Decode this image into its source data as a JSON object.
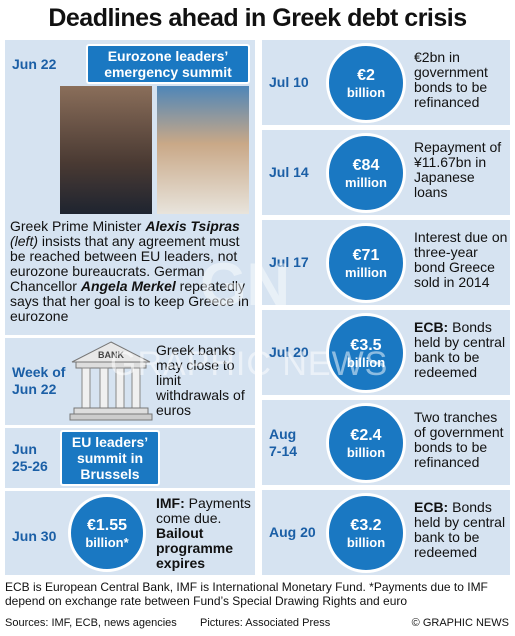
{
  "title": "Deadlines ahead in Greek debt crisis",
  "watermark": {
    "logo": "GN",
    "text": "GRAPHIC NEWS"
  },
  "left": {
    "jun22": {
      "date": "Jun 22",
      "label": [
        "Eurozone leaders’",
        "emergency summit"
      ],
      "text": [
        "Greek Prime Minister ",
        "Alexis Tsipras",
        "(left)",
        " insists that any agreement must be reached between EU leaders, not eurozone bureaucrats. German Chancellor ",
        "Angela Merkel",
        " repeatedly says that her goal is to keep Greece in eurozone"
      ]
    },
    "week": {
      "date": [
        "Week of",
        "Jun 22"
      ],
      "icon": "BANK",
      "text": "Greek banks may close to limit withdrawals of euros"
    },
    "jun25": {
      "date": [
        "Jun",
        "25-26"
      ],
      "label": [
        "EU leaders’",
        "summit in",
        "Brussels"
      ]
    },
    "jun30": {
      "date": "Jun 30",
      "amount": "€1.55",
      "unit": "billion*",
      "text": [
        "IMF:",
        " Payments come due. ",
        "Bailout programme expires"
      ]
    }
  },
  "right": [
    {
      "date": "Jul 10",
      "amount": "€2",
      "unit": "billion",
      "text": [
        "€2bn in government bonds to be refinanced"
      ]
    },
    {
      "date": "Jul 14",
      "amount": "€84",
      "unit": "million",
      "text": [
        "Repayment of ¥11.67bn in Japanese loans"
      ]
    },
    {
      "date": "Jul 17",
      "amount": "€71",
      "unit": "million",
      "text": [
        "Interest due on three-year bond Greece sold in 2014"
      ]
    },
    {
      "date": "Jul 20",
      "amount": "€3.5",
      "unit": "billion",
      "text": [
        "ECB:",
        " Bonds held by central bank to be redeemed"
      ]
    },
    {
      "date": [
        "Aug",
        "7-14"
      ],
      "amount": "€2.4",
      "unit": "billion",
      "text": [
        "Two tranches of government bonds to be refinanced"
      ]
    },
    {
      "date": "Aug 20",
      "amount": "€3.2",
      "unit": "billion",
      "text": [
        "ECB:",
        " Bonds held by central bank to be redeemed"
      ]
    }
  ],
  "footer": {
    "note": "ECB is European Central Bank, IMF is International Monetary Fund. *Payments due to IMF depend on exchange rate between Fund’s Special Drawing Rights and euro",
    "sources": "Sources: IMF, ECB, news agencies",
    "pictures": "Pictures: Associated Press",
    "credit": "© GRAPHIC NEWS"
  }
}
